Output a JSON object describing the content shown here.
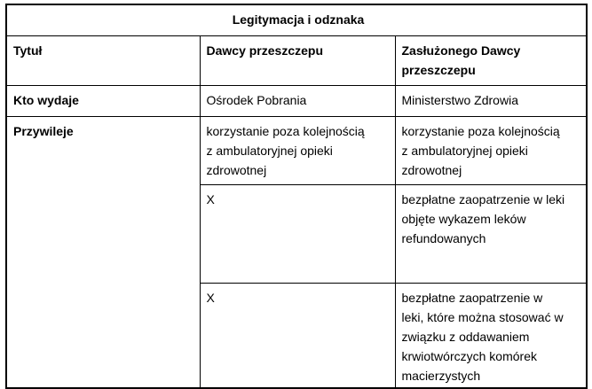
{
  "colors": {
    "background": "#ffffff",
    "border": "#000000",
    "text": "#000000"
  },
  "table": {
    "title": "Legitymacja i odznaka",
    "header": {
      "col1": "Tytuł",
      "col2": "Dawcy przeszczepu",
      "col3": "Zasłużonego Dawcy przeszczepu"
    },
    "row_issuer": {
      "label": "Kto wydaje",
      "donor": "Ośrodek Pobrania",
      "merited": "Ministerstwo Zdrowia"
    },
    "row_privileges": {
      "label": "Przywileje",
      "sub1": {
        "donor": "korzystanie poza kolejnością\nz ambulatoryjnej opieki\nzdrowotnej",
        "merited": "korzystanie poza kolejnością\nz ambulatoryjnej opieki\nzdrowotnej"
      },
      "sub2": {
        "donor": "X",
        "merited": "bezpłatne zaopatrzenie w leki\nobjęte wykazem leków\nrefundowanych"
      },
      "sub3": {
        "donor": "X",
        "merited": "bezpłatne zaopatrzenie w\nleki, które można stosować w\nzwiązku z oddawaniem\nkrwiotwórczych komórek\nmacierzystych"
      }
    }
  }
}
